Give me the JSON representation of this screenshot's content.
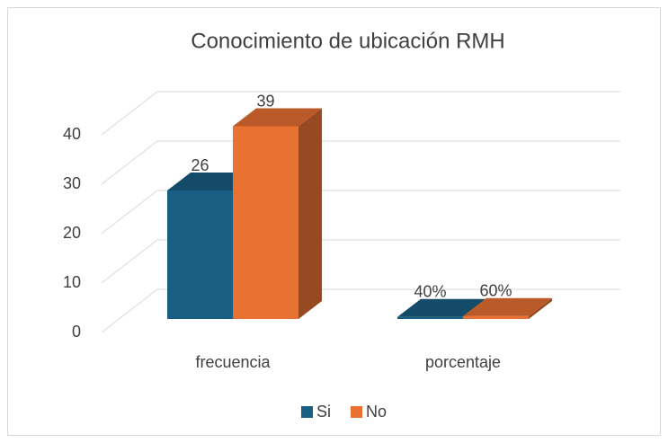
{
  "chart_data": {
    "type": "bar3d",
    "title": "Conocimiento de ubicación RMH",
    "categories": [
      "frecuencia",
      "porcentaje"
    ],
    "series": [
      {
        "name": "Si",
        "color": "#195e83",
        "values": [
          26,
          0.4
        ],
        "value_labels": [
          "26",
          "40%"
        ]
      },
      {
        "name": "No",
        "color": "#e97132",
        "values": [
          39,
          0.6
        ],
        "value_labels": [
          "39",
          "60%"
        ]
      }
    ],
    "ylim": [
      0,
      40
    ],
    "yticks": [
      0,
      10,
      20,
      30,
      40
    ],
    "grid": true,
    "legend": "bottom"
  }
}
